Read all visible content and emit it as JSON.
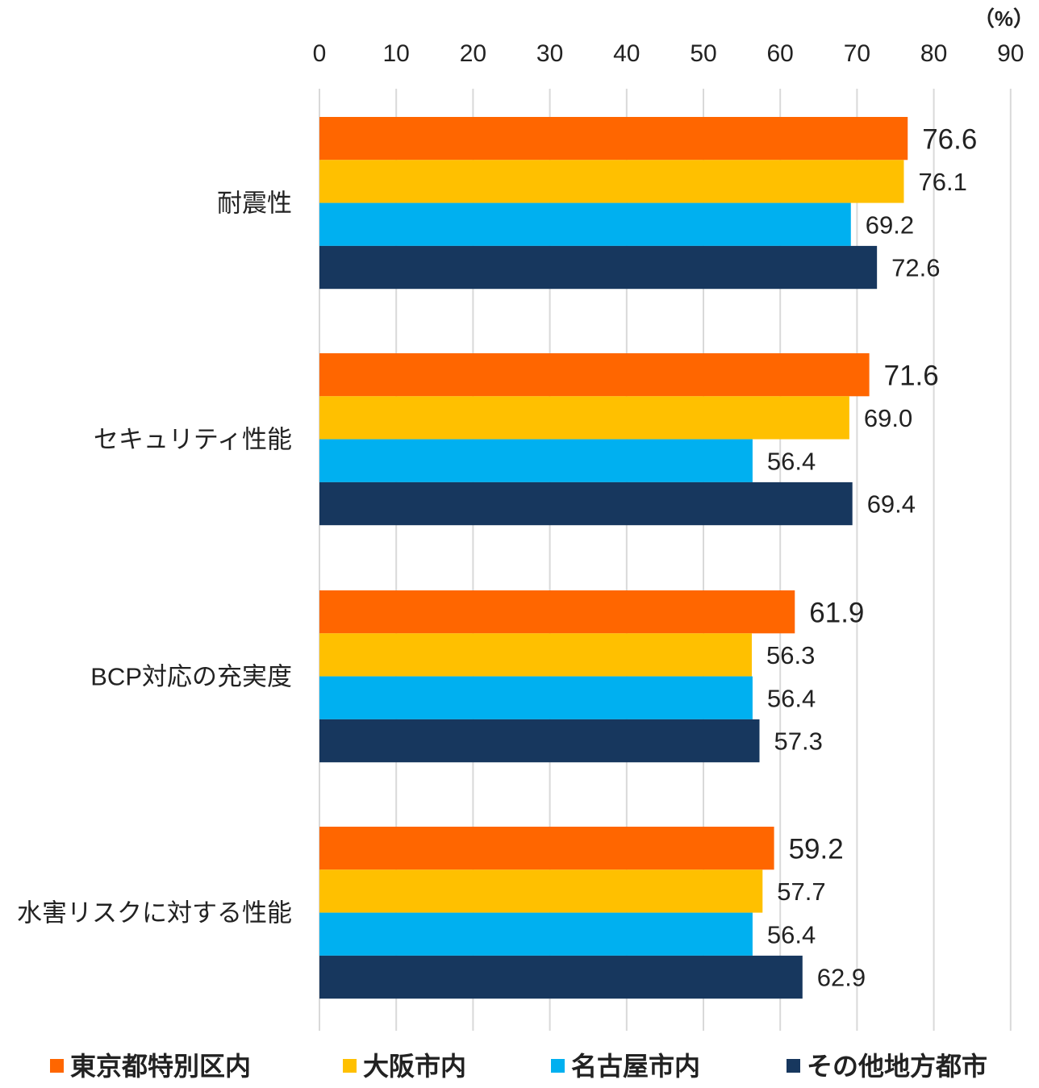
{
  "chart_data": {
    "type": "bar",
    "orientation": "horizontal",
    "unit_label": "（%）",
    "xlim": [
      0,
      90
    ],
    "x_ticks": [
      0,
      10,
      20,
      30,
      40,
      50,
      60,
      70,
      80,
      90
    ],
    "grid": true,
    "legend_position": "bottom",
    "categories": [
      "耐震性",
      "セキュリティ性能",
      "BCP対応の充実度",
      "水害リスクに対する性能"
    ],
    "series": [
      {
        "name": "東京都特別区内",
        "color": "#ff6600",
        "values": [
          76.6,
          71.6,
          61.9,
          59.2
        ]
      },
      {
        "name": "大阪市内",
        "color": "#ffc000",
        "values": [
          76.1,
          69.0,
          56.3,
          57.7
        ]
      },
      {
        "name": "名古屋市内",
        "color": "#00b0f0",
        "values": [
          69.2,
          56.4,
          56.4,
          56.4
        ]
      },
      {
        "name": "その他地方都市",
        "color": "#17375e",
        "values": [
          72.6,
          69.4,
          57.3,
          62.9
        ]
      }
    ]
  }
}
